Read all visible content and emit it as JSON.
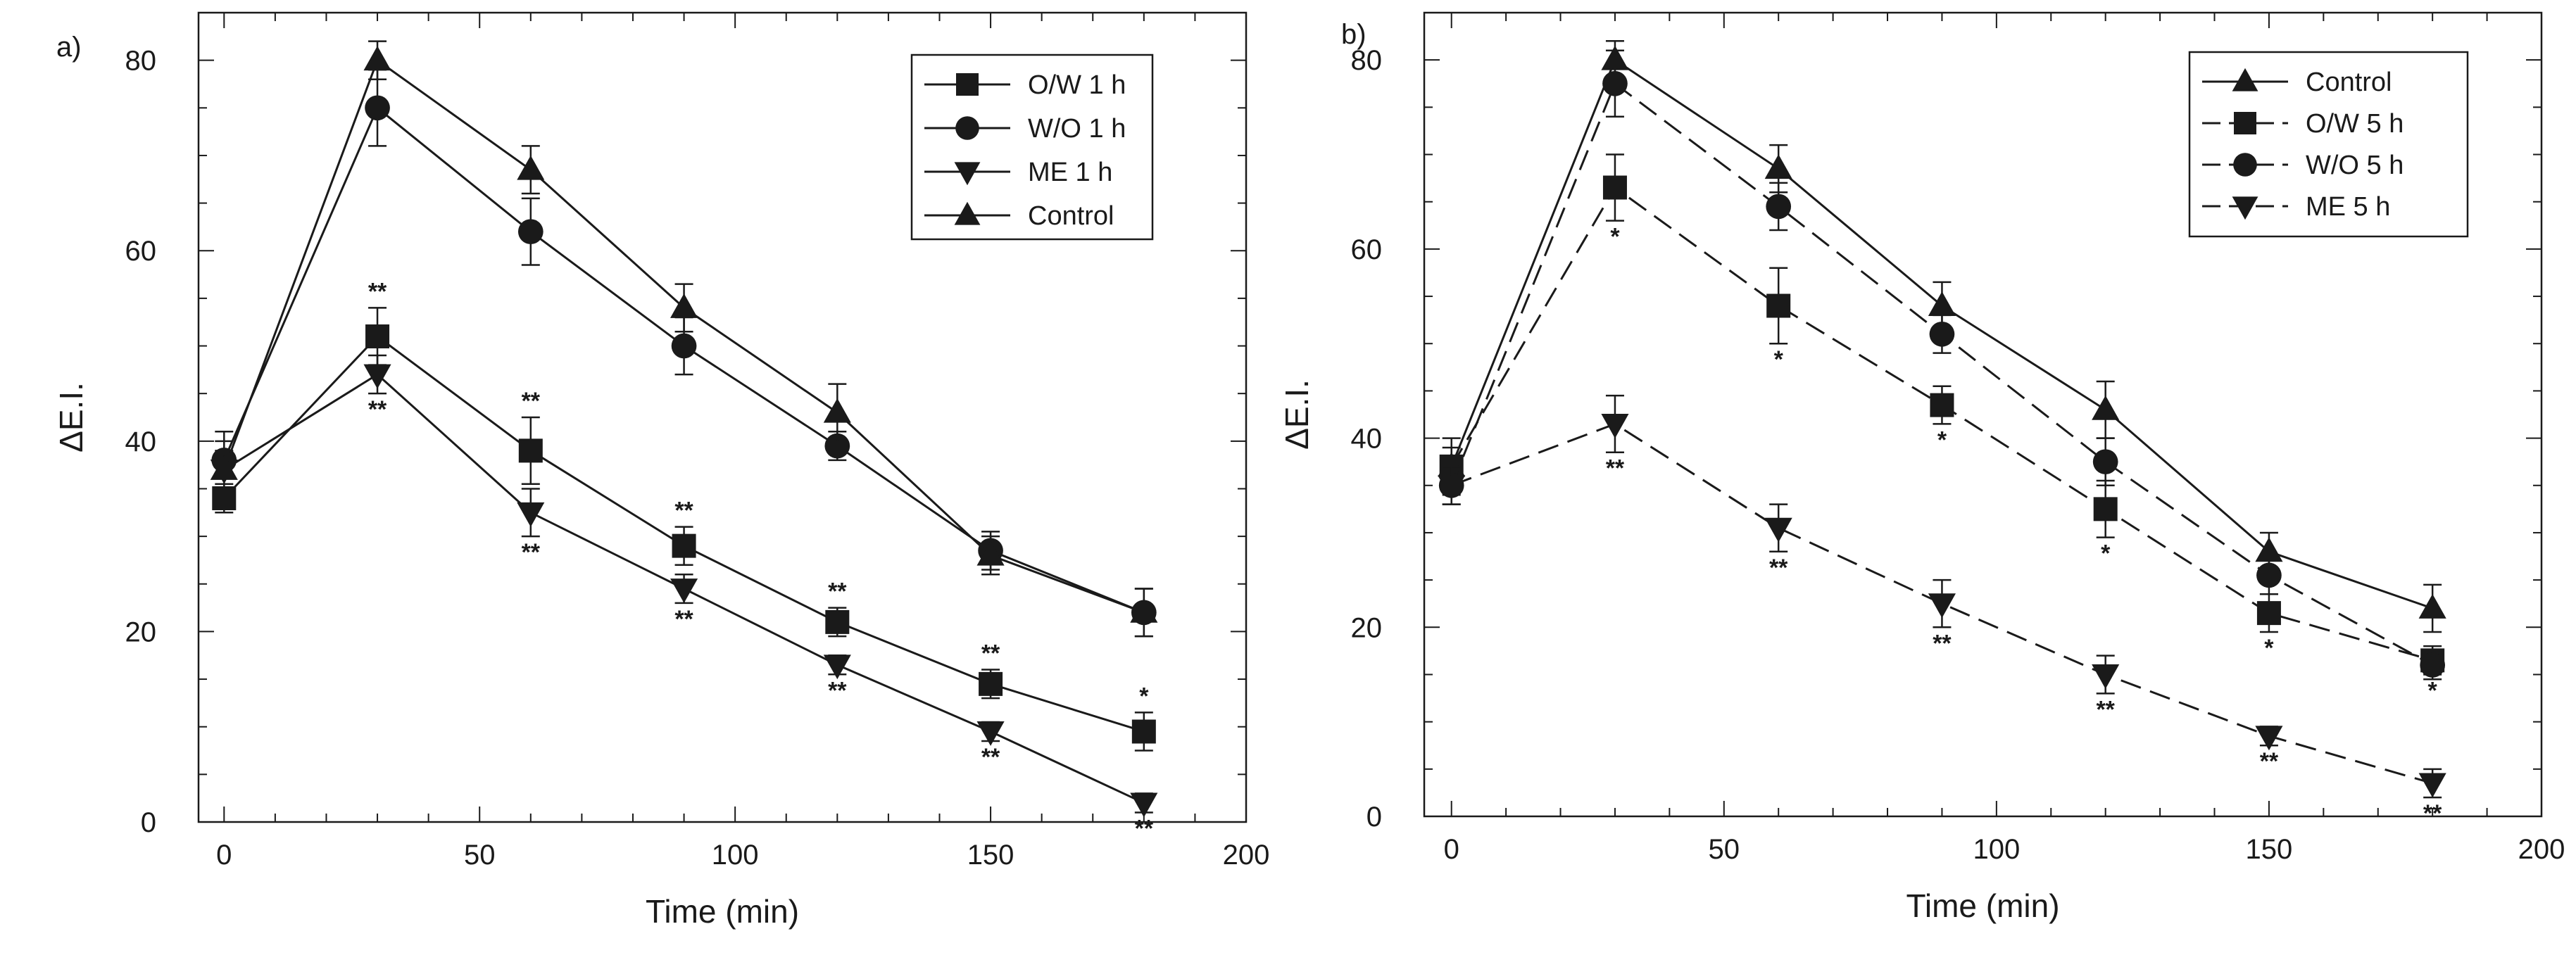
{
  "chart_data": [
    {
      "panel": "a)",
      "type": "line",
      "xlabel": "Time (min)",
      "ylabel": "ΔE.I.",
      "xlim": [
        -5,
        200
      ],
      "ylim": [
        0,
        85
      ],
      "xticks": [
        0,
        50,
        100,
        150,
        200
      ],
      "yticks": [
        0,
        20,
        40,
        60,
        80
      ],
      "legend_position": "top-right",
      "x": [
        0,
        30,
        60,
        90,
        120,
        150,
        180
      ],
      "series": [
        {
          "name": "O/W 1 h",
          "marker": "square",
          "dash": "solid",
          "values": [
            34,
            51,
            39,
            29,
            21,
            14.5,
            9.5
          ],
          "errors": [
            1.5,
            3,
            3.5,
            2,
            1.5,
            1.5,
            2
          ],
          "significance": [
            "",
            "**",
            "**",
            "**",
            "**",
            "**",
            "*"
          ]
        },
        {
          "name": "W/O 1 h",
          "marker": "circle",
          "dash": "solid",
          "values": [
            38,
            75,
            62,
            50,
            39.5,
            28.5,
            22
          ],
          "errors": [
            3,
            4,
            3.5,
            3,
            1.5,
            2,
            2.5
          ],
          "significance": [
            "",
            "",
            "",
            "",
            "",
            "",
            ""
          ]
        },
        {
          "name": "ME 1 h",
          "marker": "triangle-down",
          "dash": "solid",
          "values": [
            37,
            47,
            32.5,
            24.5,
            16.5,
            9.5,
            2
          ],
          "errors": [
            2,
            2,
            2.5,
            1.5,
            1,
            1,
            1
          ],
          "significance": [
            "",
            "**",
            "**",
            "**",
            "**",
            "**",
            "**"
          ]
        },
        {
          "name": "Control",
          "marker": "triangle-up",
          "dash": "solid",
          "values": [
            37,
            80,
            68.5,
            54,
            43,
            28,
            22
          ],
          "errors": [
            3,
            2,
            2.5,
            2.5,
            3,
            2,
            2.5
          ],
          "significance": [
            "",
            "",
            "",
            "",
            "",
            "",
            ""
          ]
        }
      ]
    },
    {
      "panel": "b)",
      "type": "line",
      "xlabel": "Time (min)",
      "ylabel": "ΔE.I.",
      "xlim": [
        -5,
        200
      ],
      "ylim": [
        0,
        85
      ],
      "xticks": [
        0,
        50,
        100,
        150,
        200
      ],
      "yticks": [
        0,
        20,
        40,
        60,
        80
      ],
      "legend_position": "top-right",
      "x": [
        0,
        30,
        60,
        90,
        120,
        150,
        180
      ],
      "series": [
        {
          "name": "Control",
          "marker": "triangle-up",
          "dash": "solid",
          "values": [
            37,
            80,
            68.5,
            54,
            43,
            28,
            22
          ],
          "errors": [
            3,
            2,
            2.5,
            2.5,
            3,
            2,
            2.5
          ],
          "significance": [
            "",
            "",
            "",
            "",
            "",
            "",
            ""
          ]
        },
        {
          "name": "O/W 5 h",
          "marker": "square",
          "dash": "dashed",
          "values": [
            37,
            66.5,
            54,
            43.5,
            32.5,
            21.5,
            16.5
          ],
          "errors": [
            2,
            3.5,
            4,
            2,
            3,
            2,
            1.5
          ],
          "significance": [
            "",
            "*",
            "*",
            "*",
            "*",
            "*",
            "*"
          ]
        },
        {
          "name": "W/O 5 h",
          "marker": "circle",
          "dash": "dashed",
          "values": [
            35,
            77.5,
            64.5,
            51,
            37.5,
            25.5,
            16
          ],
          "errors": [
            2,
            3.5,
            2.5,
            2,
            2.5,
            2,
            1.5
          ],
          "significance": [
            "",
            "",
            "",
            "",
            "",
            "",
            ""
          ]
        },
        {
          "name": "ME 5 h",
          "marker": "triangle-down",
          "dash": "dashed",
          "values": [
            35,
            41.5,
            30.5,
            22.5,
            15,
            8.5,
            3.5
          ],
          "errors": [
            2,
            3,
            2.5,
            2.5,
            2,
            1,
            1.5
          ],
          "significance": [
            "",
            "**",
            "**",
            "**",
            "**",
            "**",
            "**"
          ]
        }
      ]
    }
  ]
}
